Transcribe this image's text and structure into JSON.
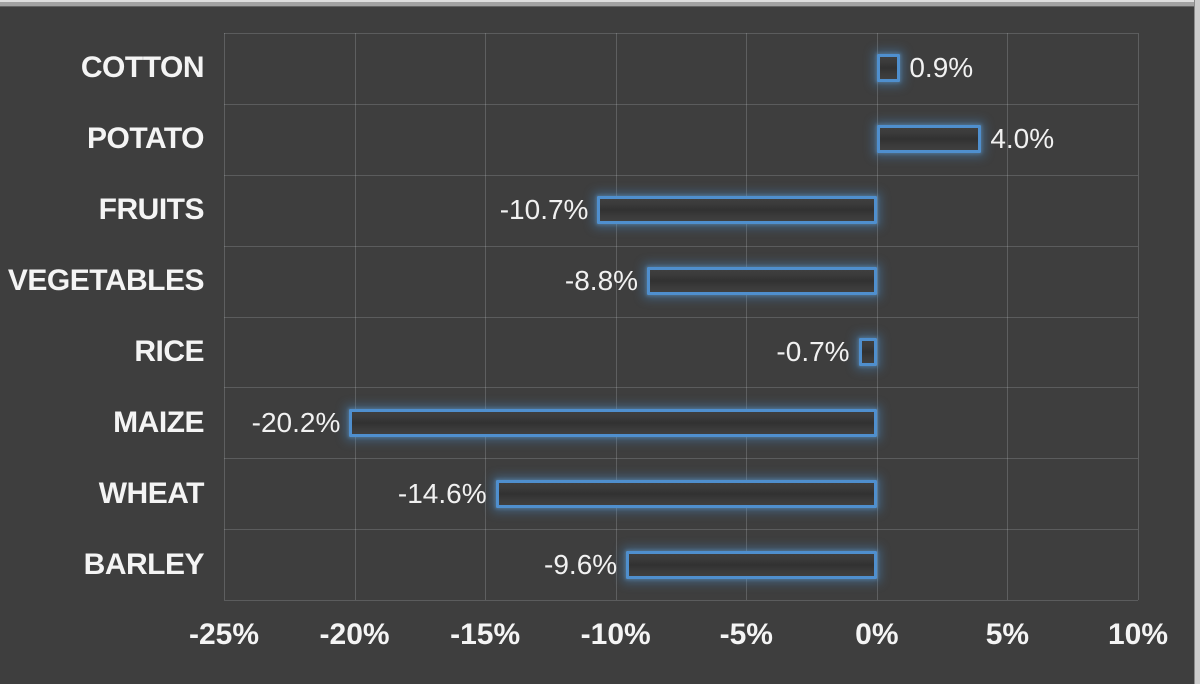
{
  "chart_data": {
    "type": "bar",
    "orientation": "horizontal",
    "title": "",
    "xlabel": "",
    "ylabel": "",
    "categories": [
      "COTTON",
      "POTATO",
      "FRUITS",
      "VEGETABLES",
      "RICE",
      "MAIZE",
      "WHEAT",
      "BARLEY"
    ],
    "values": [
      0.9,
      4.0,
      -10.7,
      -8.8,
      -0.7,
      -20.2,
      -14.6,
      -9.6
    ],
    "data_labels": [
      "0.9%",
      "4.0%",
      "-10.7%",
      "-8.8%",
      "-0.7%",
      "-20.2%",
      "-14.6%",
      "-9.6%"
    ],
    "xlim": [
      -25,
      10
    ],
    "x_ticks": [
      -25,
      -20,
      -15,
      -10,
      -5,
      0,
      5,
      10
    ],
    "x_tick_labels": [
      "-25%",
      "-20%",
      "-15%",
      "-10%",
      "-5%",
      "0%",
      "5%",
      "10%"
    ],
    "grid": true,
    "legend": false,
    "colors": {
      "background": "#3e3e3e",
      "gridline": "#5e6164",
      "bar_border": "#4f8fce",
      "bar_glow": "rgba(76,142,206,0.40)",
      "text": "#f4f4f4"
    }
  }
}
